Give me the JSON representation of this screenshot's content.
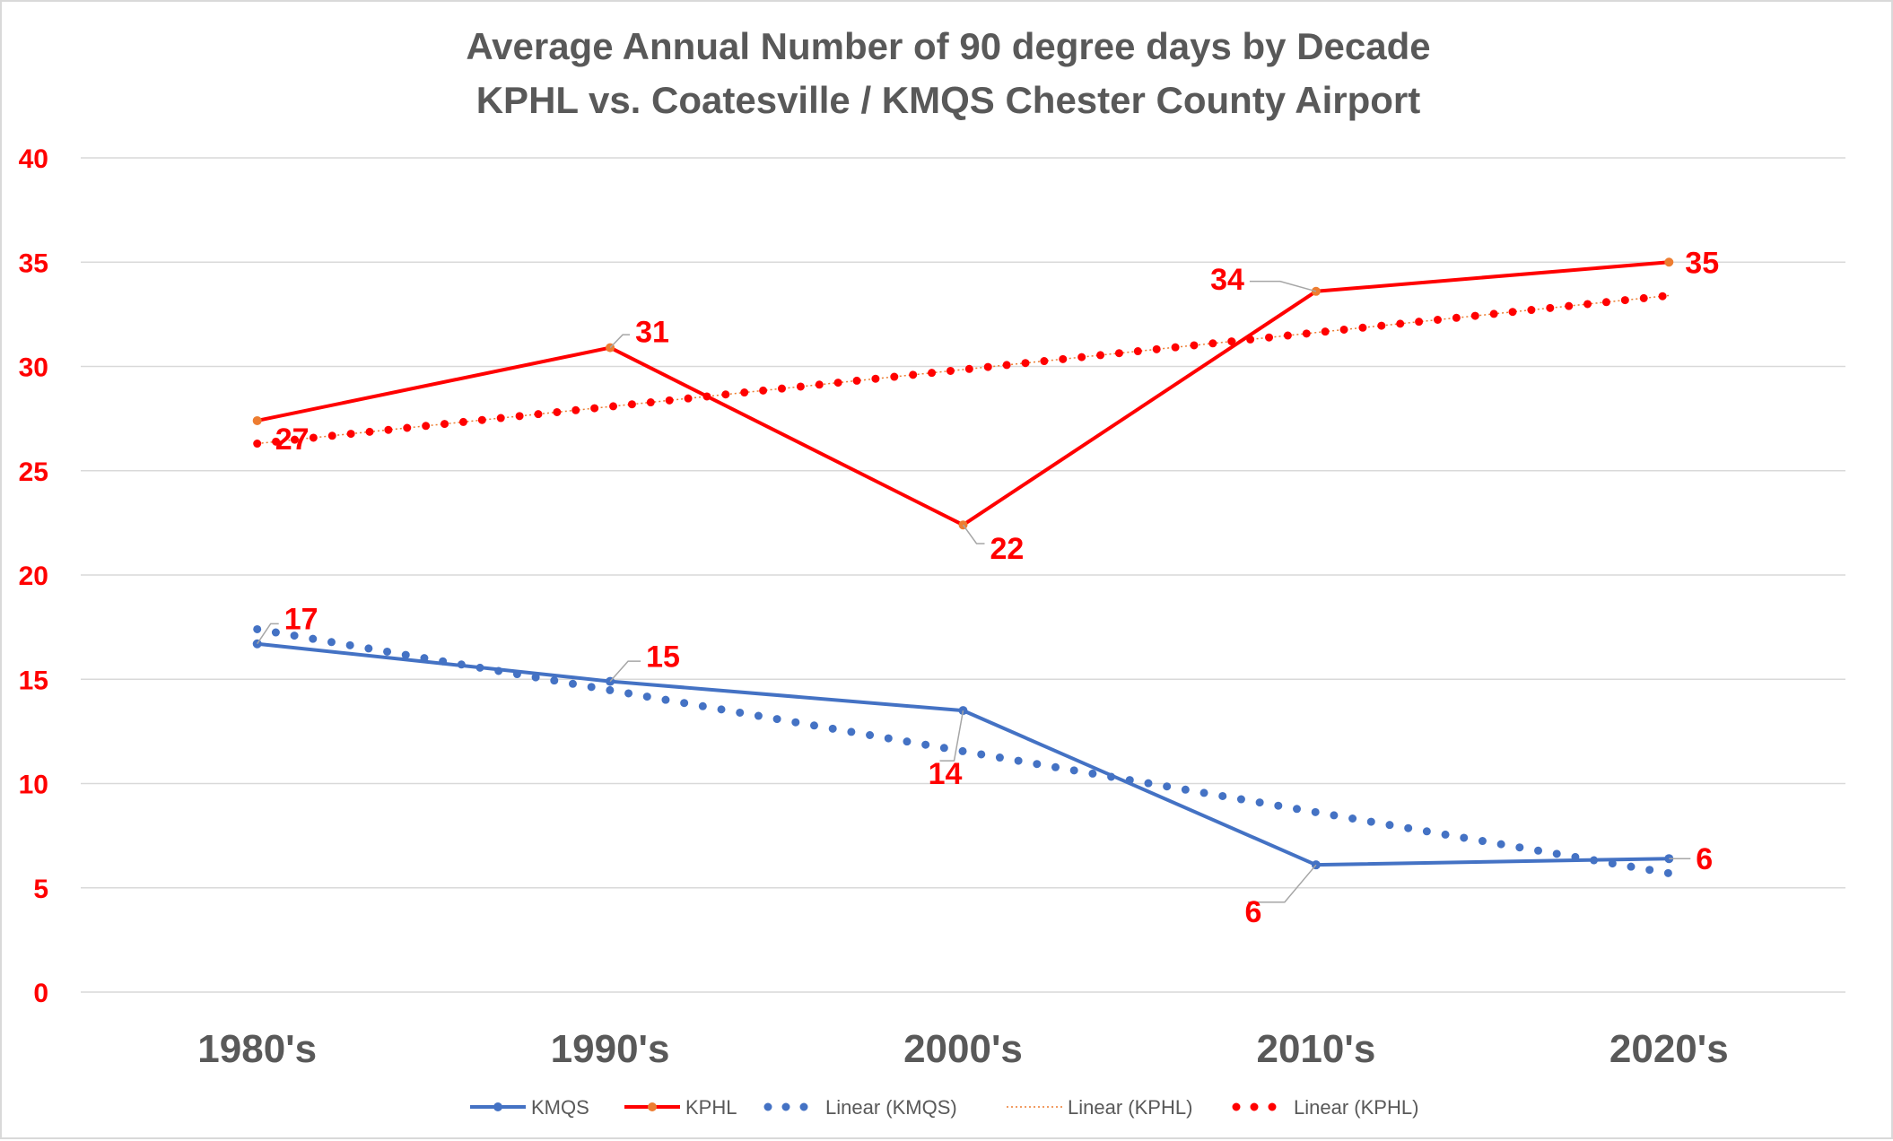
{
  "chart_data": {
    "type": "line",
    "title": "Average Annual Number of 90 degree days by Decade",
    "subtitle": "KPHL vs. Coatesville / KMQS Chester County Airport",
    "xlabel": "",
    "ylabel": "",
    "categories": [
      "1980's",
      "1990's",
      "2000's",
      "2010's",
      "2020's"
    ],
    "ylim": [
      0,
      40
    ],
    "yticks": [
      "0",
      "5",
      "10",
      "15",
      "20",
      "25",
      "30",
      "35",
      "40"
    ],
    "grid": true,
    "legend_position": "bottom",
    "series": [
      {
        "name": "KMQS",
        "values": [
          16.7,
          14.9,
          13.5,
          6.1,
          6.4
        ],
        "labels": [
          "17",
          "15",
          "14",
          "6",
          "6"
        ],
        "color": "#4472c4",
        "marker_color": "#4472c4"
      },
      {
        "name": "KPHL",
        "values": [
          27.4,
          30.9,
          22.4,
          33.6,
          35.0
        ],
        "labels": [
          "27",
          "31",
          "22",
          "34",
          "35"
        ],
        "color": "#ff0000",
        "marker_color": "#ed7d31"
      }
    ],
    "trendlines": [
      {
        "name": "Linear (KMQS)",
        "start": 17.4,
        "end": 5.7,
        "color": "#4472c4",
        "style": "round-dot"
      },
      {
        "name": "Linear (KPHL)",
        "start": 26.3,
        "end": 33.4,
        "color": "#ed7d31",
        "style": "square-dot"
      },
      {
        "name": "Linear (KPHL)",
        "start": 26.3,
        "end": 33.4,
        "color": "#ff0000",
        "style": "round-dot"
      }
    ]
  }
}
